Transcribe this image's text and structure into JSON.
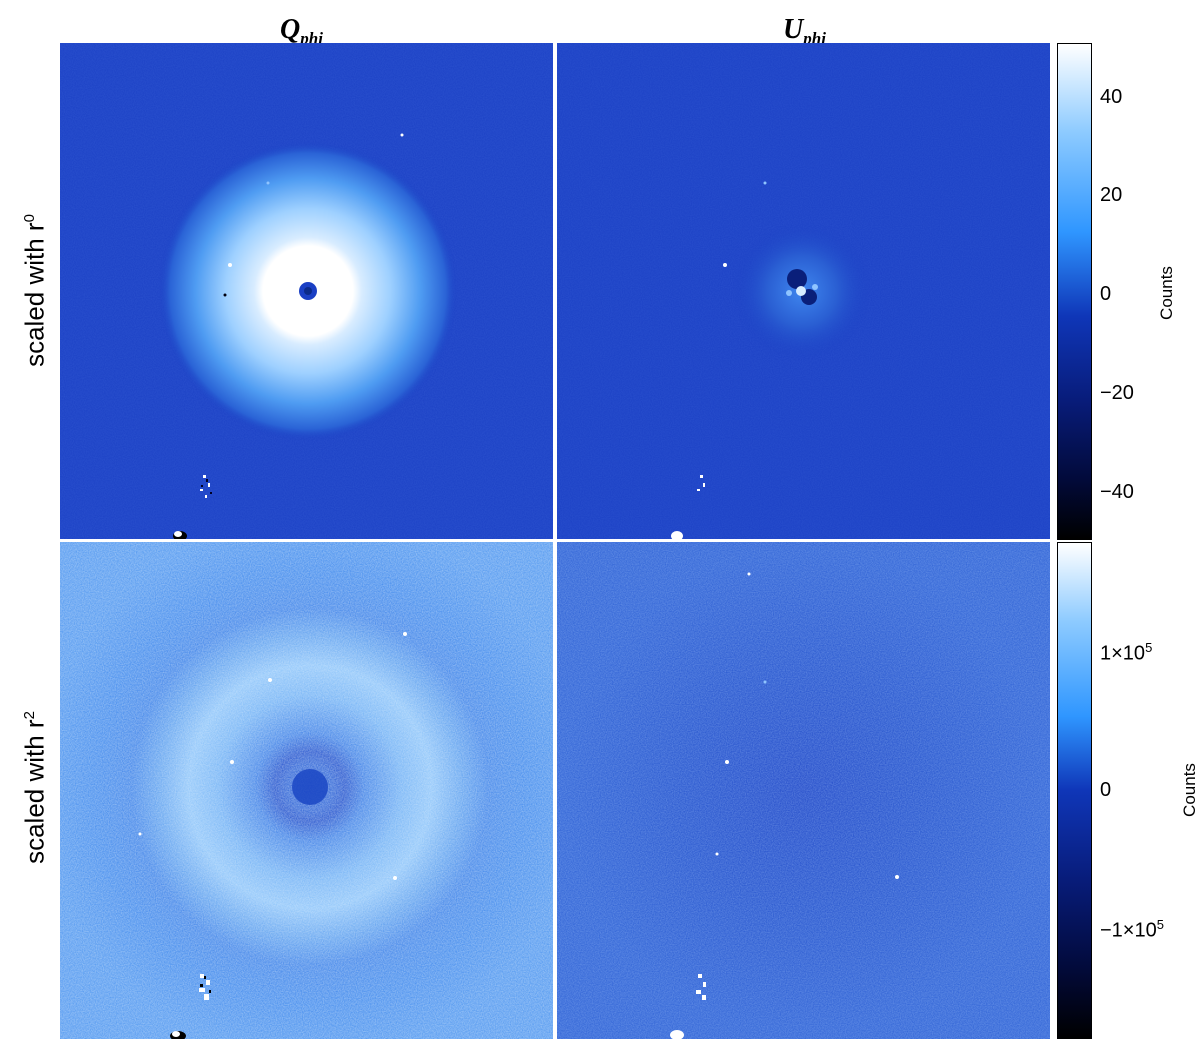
{
  "columns": {
    "left": {
      "base": "Q",
      "sub": "phi"
    },
    "right": {
      "base": "U",
      "sub": "phi"
    }
  },
  "rows": {
    "top": {
      "text": "scaled with r",
      "exponent": "0"
    },
    "bottom": {
      "text": "scaled with r",
      "exponent": "2"
    }
  },
  "colorbars": {
    "top": {
      "label": "Counts",
      "ticks": [
        "40",
        "20",
        "0",
        "−20",
        "−40"
      ],
      "range": [
        -50,
        50
      ]
    },
    "bottom": {
      "label": "Counts",
      "ticks": [
        {
          "mant": "1×10",
          "exp": "5"
        },
        {
          "mant": "0",
          "exp": ""
        },
        {
          "mant": "−1×10",
          "exp": "5"
        }
      ]
    }
  },
  "colors": {
    "background": "#1a3fc4",
    "bright": "#ffffff",
    "mid": "#2d8cf0",
    "dark": "#000000"
  }
}
